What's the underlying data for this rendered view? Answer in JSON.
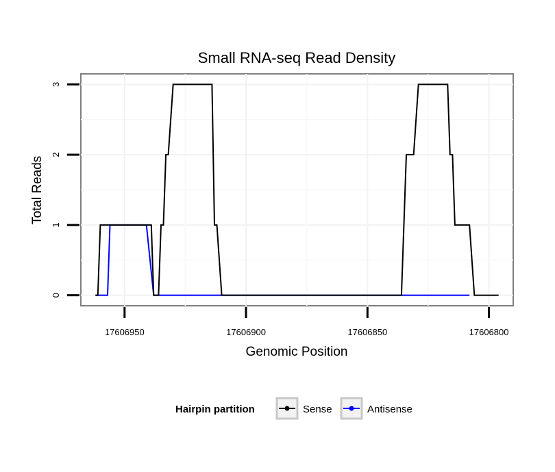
{
  "chart_data": {
    "type": "line",
    "title": "Small RNA-seq Read Density",
    "xlabel": "Genomic Position",
    "ylabel": "Total Reads",
    "x_reversed": true,
    "xlim": [
      17606968,
      17606790
    ],
    "ylim": [
      -0.15,
      3.15
    ],
    "x_ticks": [
      17606950,
      17606900,
      17606850,
      17606800
    ],
    "x_tick_labels": [
      "17606950",
      "17606900",
      "17606850",
      "17606800"
    ],
    "y_ticks": [
      0,
      1,
      2,
      3
    ],
    "y_tick_labels": [
      "0",
      "1",
      "2",
      "3"
    ],
    "grid": true,
    "legend": {
      "title": "Hairpin partition",
      "position": "bottom",
      "entries": [
        "Sense",
        "Antisense"
      ]
    },
    "series": [
      {
        "name": "Antisense",
        "color": "#0000ff",
        "points": [
          [
            17606962,
            0
          ],
          [
            17606957,
            0
          ],
          [
            17606956,
            1
          ],
          [
            17606941,
            1
          ],
          [
            17606938,
            0
          ],
          [
            17606836,
            0
          ],
          [
            17606835,
            0
          ],
          [
            17606808,
            0
          ]
        ]
      },
      {
        "name": "Sense",
        "color": "#000000",
        "points": [
          [
            17606962,
            0
          ],
          [
            17606961,
            0
          ],
          [
            17606960,
            1
          ],
          [
            17606939,
            1
          ],
          [
            17606938,
            0
          ],
          [
            17606936,
            0
          ],
          [
            17606935,
            1
          ],
          [
            17606934,
            1
          ],
          [
            17606933,
            2
          ],
          [
            17606932,
            2
          ],
          [
            17606930,
            3
          ],
          [
            17606914,
            3
          ],
          [
            17606913,
            1
          ],
          [
            17606912,
            1
          ],
          [
            17606910,
            0
          ],
          [
            17606836,
            0
          ],
          [
            17606834,
            2
          ],
          [
            17606831,
            2
          ],
          [
            17606829,
            3
          ],
          [
            17606817,
            3
          ],
          [
            17606816,
            2
          ],
          [
            17606815,
            2
          ],
          [
            17606814,
            1
          ],
          [
            17606808,
            1
          ],
          [
            17606806,
            0
          ],
          [
            17606796,
            0
          ]
        ]
      }
    ]
  }
}
